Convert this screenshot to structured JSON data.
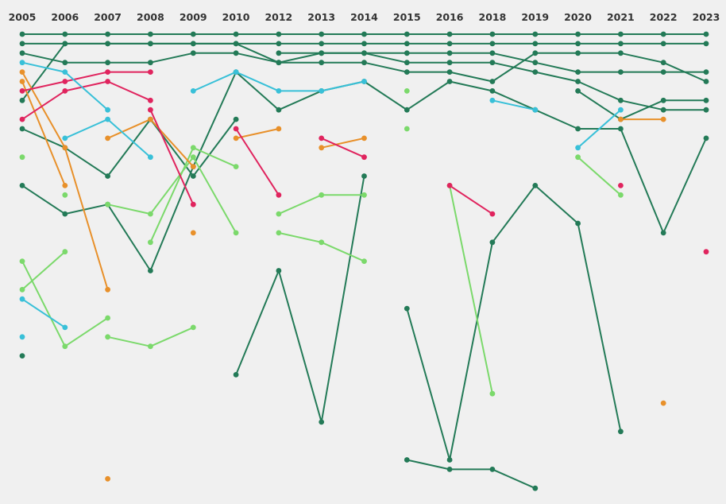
{
  "chart_data": {
    "type": "line",
    "chart_kind": "bump",
    "title": "",
    "xlabel": "",
    "ylabel": "",
    "x": [
      "2005",
      "2006",
      "2007",
      "2008",
      "2009",
      "2010",
      "2012",
      "2013",
      "2014",
      "2015",
      "2016",
      "2018",
      "2019",
      "2020",
      "2021",
      "2022",
      "2023"
    ],
    "rank_range": [
      1,
      50
    ],
    "grid": false,
    "legend": "none",
    "colors": {
      "background": "#f0f0f0",
      "dark_green": "#237a57",
      "light_green": "#7bd96b",
      "cyan": "#38c0d8",
      "magenta": "#e0245e",
      "orange": "#e8902a"
    },
    "series": [
      {
        "color": "dark_green",
        "values": [
          1,
          1,
          1,
          1,
          1,
          1,
          1,
          1,
          1,
          1,
          1,
          1,
          1,
          1,
          1,
          1,
          1
        ]
      },
      {
        "color": "dark_green",
        "values": [
          8,
          2,
          2,
          2,
          2,
          2,
          2,
          2,
          2,
          2,
          2,
          2,
          2,
          2,
          2,
          2,
          2
        ]
      },
      {
        "color": "dark_green",
        "values": [
          3,
          4,
          4,
          4,
          3,
          3,
          4,
          4,
          4,
          5,
          5,
          6,
          3,
          3,
          3,
          4,
          6
        ]
      },
      {
        "color": "dark_green",
        "values": [
          2,
          2,
          2,
          2,
          2,
          2,
          4,
          3,
          3,
          3,
          3,
          3,
          4,
          5,
          5,
          5,
          5
        ]
      },
      {
        "color": "dark_green",
        "values": [
          null,
          null,
          null,
          null,
          null,
          null,
          3,
          3,
          3,
          4,
          4,
          4,
          5,
          6,
          8,
          9,
          9
        ]
      },
      {
        "color": "dark_green",
        "values": [
          11,
          13,
          16,
          10,
          16,
          10,
          null,
          null,
          null,
          null,
          null,
          null,
          null,
          null,
          null,
          null,
          null
        ]
      },
      {
        "color": "dark_green",
        "values": [
          17,
          20,
          19,
          26,
          15,
          5,
          9,
          7,
          6,
          9,
          6,
          7,
          9,
          11,
          11,
          22,
          12
        ]
      },
      {
        "color": "dark_green",
        "values": [
          null,
          null,
          null,
          null,
          null,
          null,
          null,
          null,
          null,
          null,
          null,
          null,
          null,
          7,
          10,
          8,
          8
        ]
      },
      {
        "color": "dark_green",
        "values": [
          null,
          null,
          null,
          null,
          null,
          37,
          26,
          42,
          16,
          null,
          null,
          null,
          null,
          null,
          null,
          null,
          null
        ]
      },
      {
        "color": "dark_green",
        "values": [
          null,
          null,
          null,
          null,
          null,
          null,
          null,
          null,
          null,
          30,
          46,
          23,
          17,
          21,
          43,
          null,
          null
        ]
      },
      {
        "color": "dark_green",
        "values": [
          null,
          null,
          null,
          null,
          null,
          null,
          null,
          null,
          null,
          46,
          47,
          47,
          49,
          null,
          null,
          null,
          null
        ]
      },
      {
        "color": "light_green",
        "values": [
          14,
          null,
          null,
          null,
          null,
          null,
          null,
          null,
          null,
          null,
          null,
          null,
          null,
          null,
          null,
          null,
          null
        ]
      },
      {
        "color": "light_green",
        "values": [
          25,
          34,
          31,
          null,
          null,
          null,
          null,
          null,
          null,
          null,
          null,
          null,
          null,
          null,
          null,
          null,
          null
        ]
      },
      {
        "color": "light_green",
        "values": [
          28,
          24,
          null,
          null,
          null,
          null,
          null,
          null,
          null,
          null,
          null,
          null,
          null,
          null,
          null,
          null,
          null
        ]
      },
      {
        "color": "light_green",
        "values": [
          null,
          18,
          null,
          null,
          null,
          null,
          null,
          null,
          null,
          null,
          null,
          null,
          null,
          null,
          null,
          null,
          null
        ]
      },
      {
        "color": "light_green",
        "values": [
          null,
          null,
          33,
          34,
          32,
          null,
          null,
          null,
          null,
          null,
          null,
          null,
          null,
          null,
          null,
          null,
          null
        ]
      },
      {
        "color": "light_green",
        "values": [
          null,
          null,
          19,
          20,
          14,
          22,
          null,
          null,
          null,
          null,
          null,
          null,
          null,
          null,
          null,
          null,
          null
        ]
      },
      {
        "color": "light_green",
        "values": [
          null,
          null,
          null,
          23,
          13,
          15,
          null,
          null,
          null,
          null,
          null,
          null,
          null,
          null,
          null,
          null,
          null
        ]
      },
      {
        "color": "light_green",
        "values": [
          null,
          null,
          null,
          null,
          null,
          null,
          20,
          18,
          18,
          null,
          null,
          null,
          null,
          null,
          null,
          null,
          null
        ]
      },
      {
        "color": "light_green",
        "values": [
          null,
          null,
          null,
          null,
          null,
          null,
          22,
          23,
          25,
          null,
          null,
          null,
          null,
          null,
          null,
          null,
          null
        ]
      },
      {
        "color": "light_green",
        "values": [
          null,
          null,
          null,
          null,
          null,
          null,
          null,
          null,
          null,
          7,
          null,
          null,
          null,
          null,
          null,
          null,
          null
        ]
      },
      {
        "color": "light_green",
        "values": [
          null,
          null,
          null,
          null,
          null,
          null,
          null,
          null,
          null,
          11,
          null,
          null,
          null,
          null,
          null,
          null,
          null
        ]
      },
      {
        "color": "light_green",
        "values": [
          null,
          null,
          null,
          null,
          null,
          null,
          null,
          null,
          null,
          null,
          17,
          39,
          null,
          null,
          null,
          null,
          null
        ]
      },
      {
        "color": "light_green",
        "values": [
          null,
          null,
          null,
          null,
          null,
          null,
          null,
          null,
          null,
          null,
          null,
          null,
          null,
          14,
          18,
          null,
          null
        ]
      },
      {
        "color": "orange",
        "values": [
          5,
          13,
          28,
          null,
          null,
          null,
          null,
          null,
          null,
          null,
          null,
          null,
          null,
          null,
          null,
          null,
          null
        ]
      },
      {
        "color": "orange",
        "values": [
          6,
          17,
          null,
          null,
          null,
          null,
          null,
          null,
          null,
          null,
          null,
          null,
          null,
          null,
          null,
          null,
          null
        ]
      },
      {
        "color": "orange",
        "values": [
          null,
          null,
          12,
          10,
          15,
          null,
          null,
          null,
          null,
          null,
          null,
          null,
          null,
          null,
          null,
          null,
          null
        ]
      },
      {
        "color": "orange",
        "values": [
          null,
          null,
          null,
          null,
          null,
          12,
          11,
          null,
          null,
          null,
          null,
          null,
          null,
          null,
          null,
          null,
          null
        ]
      },
      {
        "color": "orange",
        "values": [
          null,
          null,
          null,
          null,
          22,
          null,
          null,
          null,
          null,
          null,
          null,
          null,
          null,
          null,
          null,
          null,
          null
        ]
      },
      {
        "color": "orange",
        "values": [
          null,
          null,
          null,
          null,
          null,
          null,
          null,
          null,
          null,
          null,
          null,
          null,
          null,
          null,
          10,
          10,
          null
        ]
      },
      {
        "color": "orange",
        "values": [
          null,
          null,
          null,
          null,
          null,
          null,
          null,
          null,
          null,
          null,
          null,
          null,
          null,
          null,
          null,
          40,
          null
        ]
      },
      {
        "color": "orange",
        "values": [
          null,
          null,
          48,
          null,
          null,
          null,
          null,
          null,
          null,
          null,
          null,
          null,
          null,
          null,
          null,
          null,
          null
        ]
      },
      {
        "color": "orange",
        "values": [
          null,
          null,
          null,
          null,
          null,
          null,
          null,
          13,
          12,
          null,
          null,
          null,
          null,
          null,
          null,
          null,
          null
        ]
      },
      {
        "color": "magenta",
        "values": [
          7,
          6,
          5,
          5,
          null,
          null,
          null,
          null,
          null,
          null,
          null,
          null,
          null,
          null,
          null,
          null,
          null
        ]
      },
      {
        "color": "magenta",
        "values": [
          10,
          7,
          6,
          8,
          null,
          null,
          null,
          null,
          null,
          null,
          null,
          null,
          null,
          null,
          null,
          null,
          null
        ]
      },
      {
        "color": "magenta",
        "values": [
          null,
          null,
          null,
          9,
          19,
          null,
          null,
          null,
          null,
          null,
          null,
          null,
          null,
          null,
          null,
          null,
          null
        ]
      },
      {
        "color": "magenta",
        "values": [
          null,
          null,
          null,
          null,
          null,
          11,
          18,
          null,
          null,
          null,
          null,
          null,
          null,
          null,
          null,
          null,
          null
        ]
      },
      {
        "color": "magenta",
        "values": [
          null,
          null,
          null,
          null,
          null,
          null,
          null,
          12,
          14,
          null,
          null,
          null,
          null,
          null,
          null,
          null,
          null
        ]
      },
      {
        "color": "magenta",
        "values": [
          null,
          null,
          null,
          null,
          null,
          null,
          null,
          null,
          null,
          null,
          17,
          20,
          null,
          null,
          null,
          null,
          null
        ]
      },
      {
        "color": "magenta",
        "values": [
          null,
          null,
          null,
          null,
          null,
          null,
          null,
          null,
          null,
          null,
          null,
          null,
          null,
          null,
          17,
          null,
          null
        ]
      },
      {
        "color": "magenta",
        "values": [
          null,
          null,
          null,
          null,
          null,
          null,
          null,
          null,
          null,
          null,
          null,
          null,
          null,
          null,
          null,
          null,
          24
        ]
      },
      {
        "color": "cyan",
        "values": [
          4,
          5,
          9,
          null,
          null,
          null,
          null,
          null,
          null,
          null,
          null,
          null,
          null,
          null,
          null,
          null,
          null
        ]
      },
      {
        "color": "cyan",
        "values": [
          null,
          12,
          10,
          14,
          null,
          null,
          null,
          null,
          null,
          null,
          null,
          null,
          null,
          null,
          null,
          null,
          null
        ]
      },
      {
        "color": "cyan",
        "values": [
          null,
          null,
          null,
          null,
          7,
          5,
          7,
          7,
          6,
          null,
          null,
          null,
          null,
          null,
          null,
          null,
          null
        ]
      },
      {
        "color": "cyan",
        "values": [
          null,
          null,
          null,
          null,
          null,
          null,
          null,
          null,
          null,
          null,
          null,
          8,
          9,
          null,
          null,
          null,
          null
        ]
      },
      {
        "color": "cyan",
        "values": [
          null,
          null,
          null,
          null,
          null,
          null,
          null,
          null,
          null,
          null,
          null,
          null,
          null,
          13,
          9,
          null,
          null
        ]
      },
      {
        "color": "cyan",
        "values": [
          29,
          32,
          null,
          null,
          null,
          null,
          null,
          null,
          null,
          null,
          null,
          null,
          null,
          null,
          null,
          null,
          null
        ]
      }
    ],
    "loose_points": [
      {
        "color": "cyan",
        "x": "2005",
        "value": 33
      },
      {
        "color": "dark_green",
        "x": "2005",
        "value": 35
      }
    ]
  }
}
